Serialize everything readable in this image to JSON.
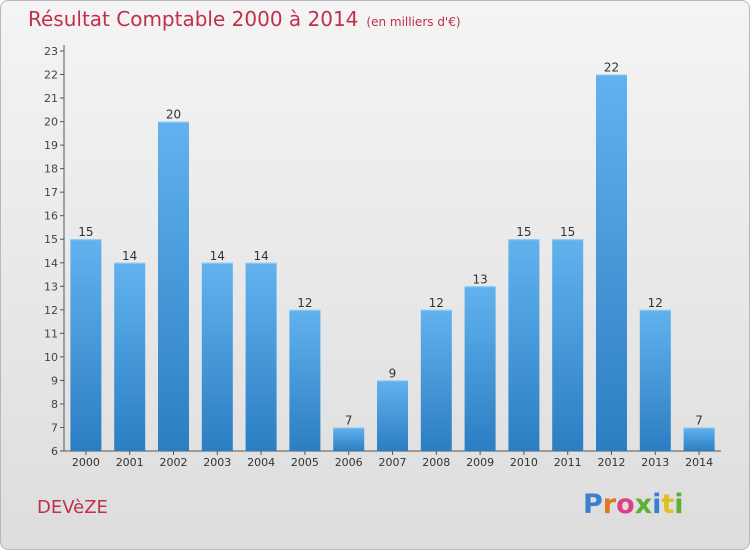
{
  "header": {
    "title": "Résultat Comptable 2000 à 2014",
    "subtitle": "(en milliers d'€)"
  },
  "place": "DEVèZE",
  "logo": {
    "text": "Proxiti",
    "letter_colors": [
      "#3a7fd0",
      "#e07820",
      "#e04080",
      "#60b030",
      "#3a7fd0",
      "#e0c020",
      "#60b030"
    ]
  },
  "colors": {
    "bar_light": "#62b2ef",
    "bar_dark": "#2b7ec2",
    "title": "#c0304a",
    "axis": "#555555"
  },
  "chart_data": {
    "type": "bar",
    "categories": [
      "2000",
      "2001",
      "2002",
      "2003",
      "2004",
      "2005",
      "2006",
      "2007",
      "2008",
      "2009",
      "2010",
      "2011",
      "2012",
      "2013",
      "2014"
    ],
    "values": [
      15,
      14,
      20,
      14,
      14,
      12,
      7,
      9,
      12,
      13,
      15,
      15,
      22,
      12,
      7
    ],
    "title": "Résultat Comptable 2000 à 2014",
    "ylim": [
      6,
      23
    ],
    "yticks": [
      6,
      7,
      8,
      9,
      10,
      11,
      12,
      13,
      14,
      15,
      16,
      17,
      18,
      19,
      20,
      21,
      22,
      23
    ],
    "grid": false,
    "data_labels": true
  }
}
